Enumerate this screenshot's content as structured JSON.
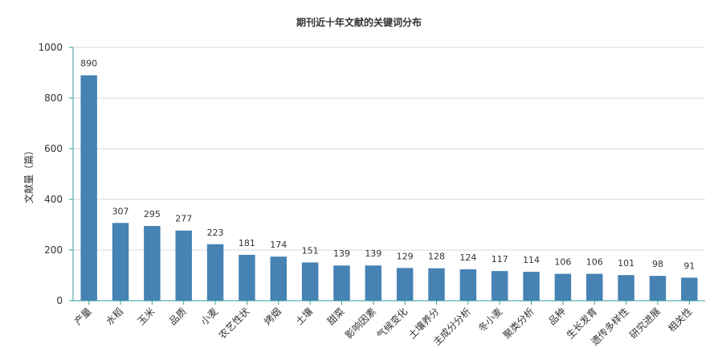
{
  "chart_data": {
    "type": "bar",
    "title": "期刊近十年文献的关键词分布",
    "xlabel": "",
    "ylabel": "文献量（篇）",
    "ylim": [
      0,
      1000
    ],
    "yticks": [
      0,
      200,
      400,
      600,
      800,
      1000
    ],
    "grid": true,
    "legend": "none",
    "bar_color": "#4682b4",
    "categories": [
      "产量",
      "水稻",
      "玉米",
      "品质",
      "小麦",
      "农艺性状",
      "烤烟",
      "土壤",
      "甜菜",
      "影响因素",
      "气候变化",
      "土壤养分",
      "主成分分析",
      "冬小麦",
      "聚类分析",
      "品种",
      "生长发育",
      "遗传多样性",
      "研究进展",
      "相关性"
    ],
    "values": [
      890,
      307,
      295,
      277,
      223,
      181,
      174,
      151,
      139,
      139,
      129,
      128,
      124,
      117,
      114,
      106,
      106,
      101,
      98,
      91
    ]
  }
}
